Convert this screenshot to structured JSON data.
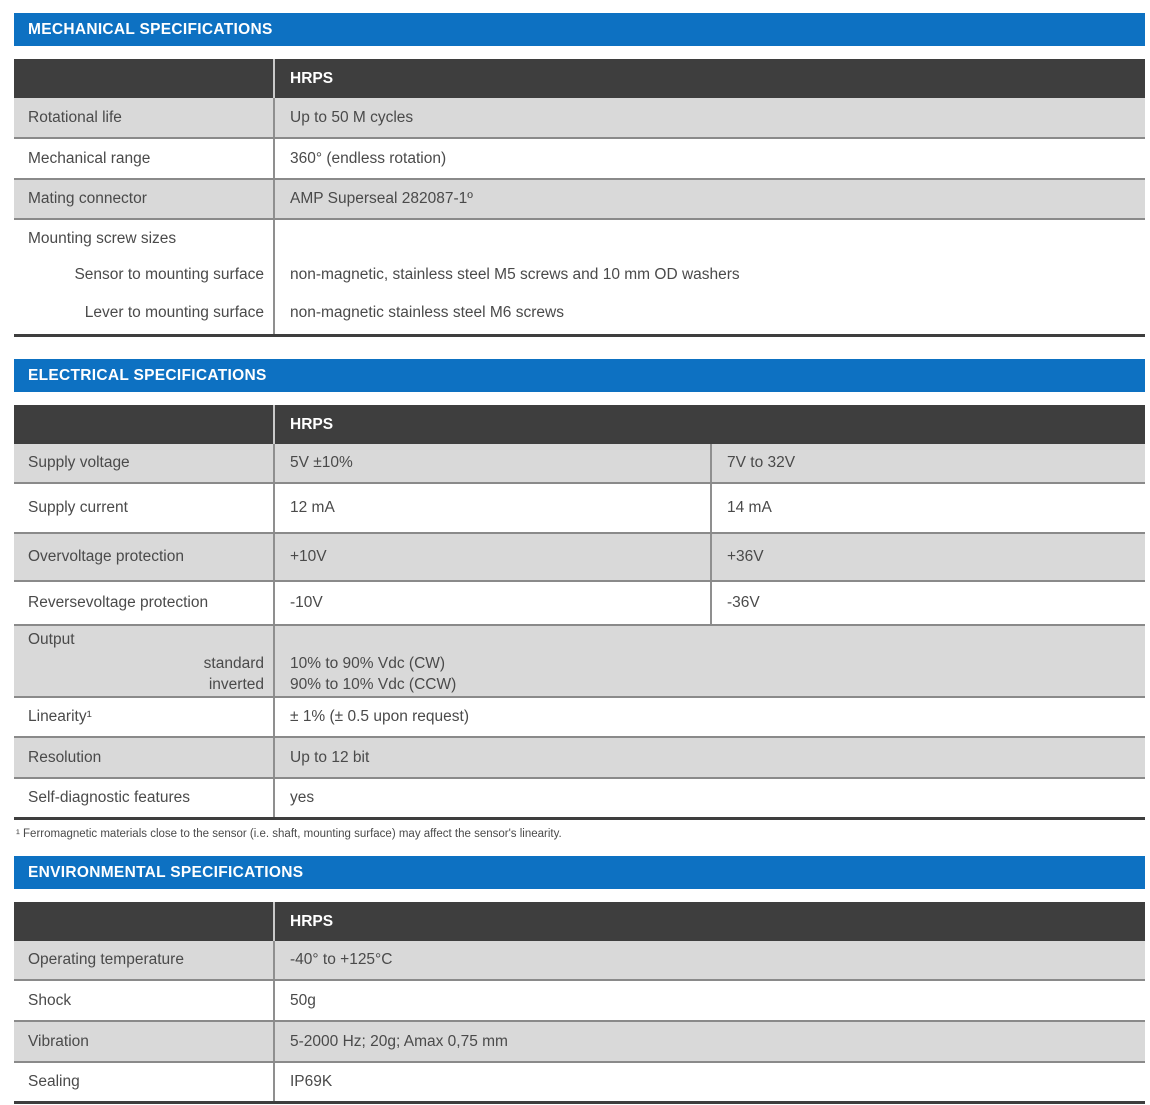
{
  "colors": {
    "accent_blue": "#0d71c2",
    "header_dark": "#3e3e3e",
    "row_gray": "#d9d9d9",
    "text_gray": "#4a4a4a"
  },
  "sections": [
    {
      "title": "MECHANICAL SPECIFICATIONS",
      "column_header": "HRPS",
      "rows": [
        {
          "label": "Rotational life",
          "value": "Up to 50 M cycles"
        },
        {
          "label": "Mechanical range",
          "value": "360° (endless rotation)"
        },
        {
          "label": "Mating connector",
          "value": "AMP Superseal 282087-1º"
        },
        {
          "label": "Mounting screw sizes",
          "sublines": [
            {
              "label": "Sensor to mounting surface",
              "value": "non-magnetic, stainless steel M5 screws and 10 mm OD washers"
            },
            {
              "label": "Lever to mounting surface",
              "value": "non-magnetic stainless steel M6 screws"
            }
          ]
        }
      ]
    },
    {
      "title": "ELECTRICAL SPECIFICATIONS",
      "column_header": "HRPS",
      "rows": [
        {
          "label": "Supply voltage",
          "value": "5V ±10%",
          "value2": "7V to 32V"
        },
        {
          "label": "Supply current",
          "value": "12 mA",
          "value2": "14 mA"
        },
        {
          "label": "Overvoltage protection",
          "value": "+10V",
          "value2": "+36V"
        },
        {
          "label": "Reversevoltage protection",
          "value": "-10V",
          "value2": "-36V"
        },
        {
          "label": "Output",
          "sublines": [
            {
              "label": "standard",
              "value": "10% to 90% Vdc (CW)"
            },
            {
              "label": "inverted",
              "value": "90% to 10% Vdc (CCW)"
            }
          ]
        },
        {
          "label": "Linearity¹",
          "value": "± 1% (± 0.5 upon request)"
        },
        {
          "label": "Resolution",
          "value": "Up to 12 bit"
        },
        {
          "label": "Self-diagnostic features",
          "value": "yes"
        }
      ],
      "footnote": "¹ Ferromagnetic materials close to the sensor (i.e. shaft, mounting surface) may affect the sensor's linearity."
    },
    {
      "title": "ENVIRONMENTAL SPECIFICATIONS",
      "column_header": "HRPS",
      "rows": [
        {
          "label": "Operating temperature",
          "value": "-40° to +125°C"
        },
        {
          "label": "Shock",
          "value": "50g"
        },
        {
          "label": "Vibration",
          "value": "5-2000 Hz; 20g; Amax 0,75 mm"
        },
        {
          "label": "Sealing",
          "value": "IP69K"
        }
      ]
    }
  ]
}
